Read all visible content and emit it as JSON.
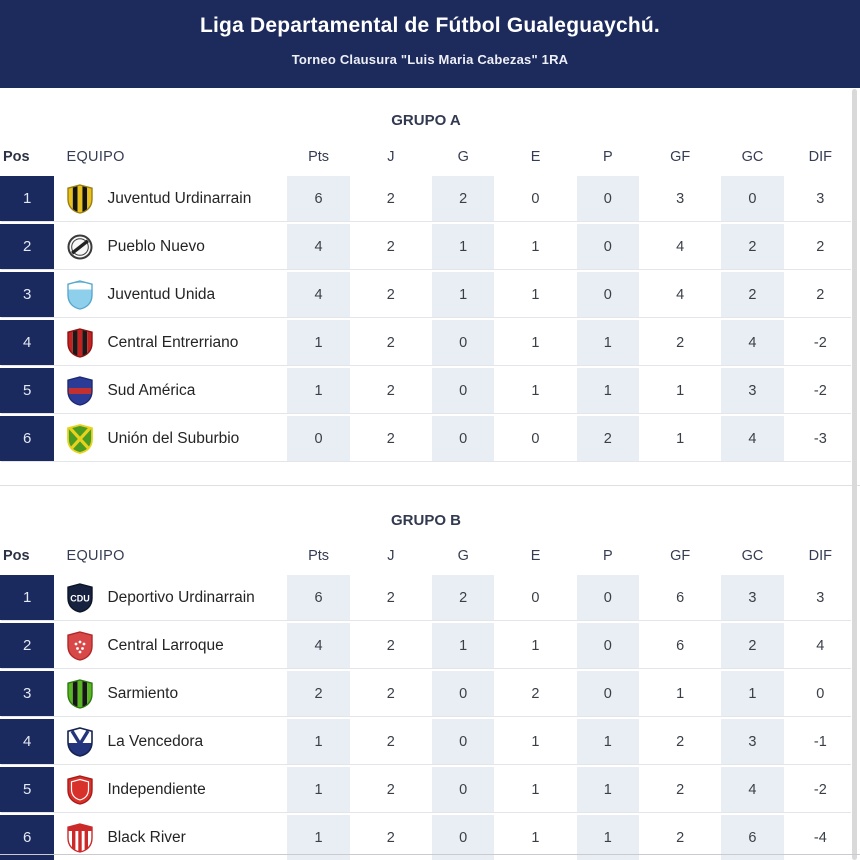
{
  "header": {
    "title": "Liga Departamental de Fútbol Gualeguaychú.",
    "subtitle": "Torneo Clausura \"Luis Maria Cabezas\" 1RA"
  },
  "columns": [
    "Pos",
    "EQUIPO",
    "Pts",
    "J",
    "G",
    "E",
    "P",
    "GF",
    "GC",
    "DIF"
  ],
  "colors": {
    "header_bg": "#1d2a5c",
    "pos_bg": "#1b2a5e",
    "shaded_col": "#e9eef5",
    "divider": "#dfdfdf",
    "scrollbar": "#d9d9d9"
  },
  "groups": [
    {
      "title": "GRUPO A",
      "rows": [
        {
          "pos": "1",
          "team": "Juventud Urdinarrain",
          "stats": [
            "6",
            "2",
            "2",
            "0",
            "0",
            "3",
            "0",
            "3"
          ],
          "badge": {
            "kind": "vstripes",
            "stripes": [
              "#e8c01f",
              "#14140e",
              "#e8c01f",
              "#14140e",
              "#e8c01f"
            ],
            "border": "#9a7f10"
          }
        },
        {
          "pos": "2",
          "team": "Pueblo Nuevo",
          "stats": [
            "4",
            "2",
            "1",
            "1",
            "0",
            "4",
            "2",
            "2"
          ],
          "badge": {
            "kind": "circlering",
            "bg": "#f7f7f7",
            "ring": "#3a3a3a",
            "band": "#222222"
          }
        },
        {
          "pos": "3",
          "team": "Juventud Unida",
          "stats": [
            "4",
            "2",
            "1",
            "1",
            "0",
            "4",
            "2",
            "2"
          ],
          "badge": {
            "kind": "hband",
            "bg": "#8ecfec",
            "band": "#ffffff",
            "band_pos": "top",
            "border": "#5aa8cc"
          }
        },
        {
          "pos": "4",
          "team": "Central Entrerriano",
          "stats": [
            "1",
            "2",
            "0",
            "1",
            "1",
            "2",
            "4",
            "-2"
          ],
          "badge": {
            "kind": "vstripes",
            "stripes": [
              "#c22222",
              "#191919",
              "#c22222",
              "#191919",
              "#c22222"
            ],
            "border": "#8e1414"
          }
        },
        {
          "pos": "5",
          "team": "Sud América",
          "stats": [
            "1",
            "2",
            "0",
            "1",
            "1",
            "1",
            "3",
            "-2"
          ],
          "badge": {
            "kind": "hband",
            "bg": "#2c3c96",
            "band": "#c23030",
            "band_pos": "middle",
            "border": "#1d2a70"
          }
        },
        {
          "pos": "6",
          "team": "Unión del Suburbio",
          "stats": [
            "0",
            "2",
            "0",
            "0",
            "2",
            "1",
            "4",
            "-3"
          ],
          "badge": {
            "kind": "saltire",
            "bg": "#4d9c22",
            "cross": "#e8d21e",
            "border": "#e8d21e"
          }
        }
      ]
    },
    {
      "title": "GRUPO B",
      "rows": [
        {
          "pos": "1",
          "team": "Deportivo Urdinarrain",
          "stats": [
            "6",
            "2",
            "2",
            "0",
            "0",
            "6",
            "3",
            "3"
          ],
          "badge": {
            "kind": "monogram",
            "bg": "#16223f",
            "text": "CDU",
            "text_color": "#ffffff",
            "border": "#0c1428"
          }
        },
        {
          "pos": "2",
          "team": "Central Larroque",
          "stats": [
            "4",
            "2",
            "1",
            "1",
            "0",
            "6",
            "2",
            "4"
          ],
          "badge": {
            "kind": "shield",
            "bg": "#d84848",
            "accent": "#ffffff",
            "border": "#b02828",
            "detail": "dots"
          }
        },
        {
          "pos": "3",
          "team": "Sarmiento",
          "stats": [
            "2",
            "2",
            "0",
            "2",
            "0",
            "1",
            "1",
            "0"
          ],
          "badge": {
            "kind": "vstripes",
            "stripes": [
              "#59b523",
              "#161616",
              "#59b523",
              "#161616",
              "#59b523"
            ],
            "border": "#2f7a10"
          }
        },
        {
          "pos": "4",
          "team": "La Vencedora",
          "stats": [
            "1",
            "2",
            "0",
            "1",
            "1",
            "2",
            "3",
            "-1"
          ],
          "badge": {
            "kind": "vshield",
            "bg": "#24357e",
            "border": "#16224f"
          }
        },
        {
          "pos": "5",
          "team": "Independiente",
          "stats": [
            "1",
            "2",
            "0",
            "1",
            "1",
            "2",
            "4",
            "-2"
          ],
          "badge": {
            "kind": "shield",
            "bg": "#d8302a",
            "accent": "#ffffff",
            "border": "#a81c18",
            "detail": "inner"
          }
        },
        {
          "pos": "6",
          "team": "Black River",
          "stats": [
            "1",
            "2",
            "0",
            "1",
            "1",
            "2",
            "6",
            "-4"
          ],
          "badge": {
            "kind": "topband",
            "bg": "#ffffff",
            "band": "#cc2a2a",
            "stripes": "#cc2a2a",
            "border": "#cc2a2a"
          }
        }
      ]
    }
  ]
}
